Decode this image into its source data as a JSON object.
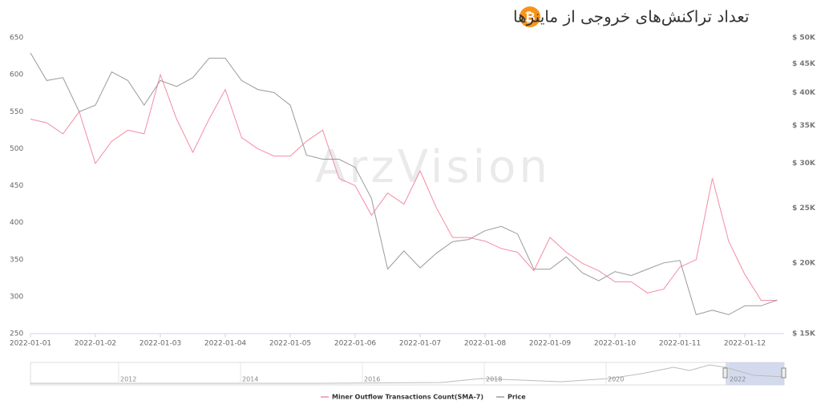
{
  "chart_data": {
    "type": "line",
    "title": "تعداد تراکنش‌های خروجی از ماینرها",
    "watermark": "ArzVision",
    "categories": [
      "2022-01-01",
      null,
      null,
      null,
      "2022-01-02",
      null,
      null,
      null,
      "2022-01-03",
      null,
      null,
      null,
      "2022-01-04",
      null,
      null,
      null,
      "2022-01-05",
      null,
      null,
      null,
      "2022-01-06",
      null,
      null,
      null,
      "2022-01-07",
      null,
      null,
      null,
      "2022-01-08",
      null,
      null,
      null,
      "2022-01-09",
      null,
      null,
      null,
      "2022-01-10",
      null,
      null,
      null,
      "2022-01-11",
      null,
      null,
      null,
      "2022-01-12",
      null,
      null
    ],
    "series": [
      {
        "name": "Miner Outflow Transactions Count(SMA-7)",
        "color": "#f48ca3",
        "values": [
          540,
          535,
          520,
          550,
          480,
          510,
          525,
          520,
          600,
          540,
          495,
          540,
          580,
          515,
          500,
          490,
          490,
          510,
          525,
          460,
          450,
          410,
          440,
          425,
          470,
          420,
          380,
          380,
          375,
          365,
          360,
          335,
          380,
          360,
          345,
          335,
          320,
          320,
          305,
          310,
          340,
          350,
          460,
          375,
          330,
          295,
          295
        ]
      },
      {
        "name": "Price",
        "color": "#9a9a9a",
        "axis": "y2",
        "values": [
          47000,
          42000,
          42500,
          37000,
          38000,
          43500,
          42000,
          38000,
          42000,
          41000,
          42500,
          46000,
          46000,
          42000,
          40500,
          40000,
          38000,
          31000,
          30500,
          30500,
          29500,
          26000,
          19500,
          21000,
          19600,
          20800,
          21800,
          22000,
          22800,
          23200,
          22500,
          19500,
          19500,
          20500,
          19200,
          18600,
          19300,
          19000,
          19500,
          20000,
          20200,
          16200,
          16500,
          16200,
          16800,
          16800,
          17200
        ]
      }
    ],
    "ylim": [
      250,
      650
    ],
    "yticks": [
      250,
      300,
      350,
      400,
      450,
      500,
      550,
      600,
      650
    ],
    "y2lim": [
      15000,
      50000
    ],
    "y2log": true,
    "y2ticks": [
      {
        "value": 15000,
        "label": "$ 15K"
      },
      {
        "value": 20000,
        "label": "$ 20K"
      },
      {
        "value": 25000,
        "label": "$ 25K"
      },
      {
        "value": 30000,
        "label": "$ 30K"
      },
      {
        "value": 35000,
        "label": "$ 35K"
      },
      {
        "value": 40000,
        "label": "$ 40K"
      },
      {
        "value": 45000,
        "label": "$ 45K"
      },
      {
        "value": 50000,
        "label": "$ 50K"
      }
    ],
    "navigator_labels": [
      "2012",
      "2014",
      "2016",
      "2018",
      "2020",
      "2022"
    ]
  }
}
